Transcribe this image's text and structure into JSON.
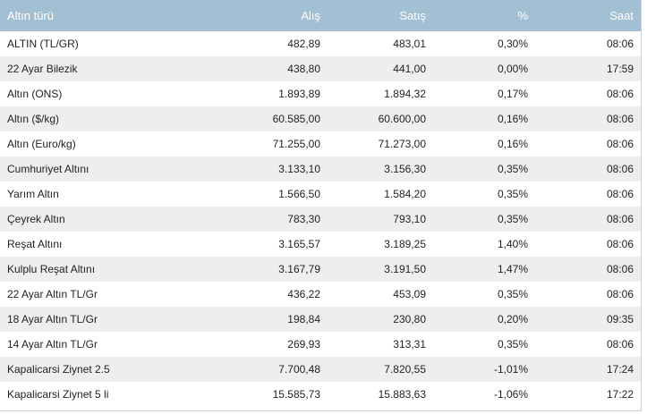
{
  "table": {
    "headers": {
      "name": "Altın türü",
      "alis": "Alış",
      "satis": "Satış",
      "pct": "%",
      "saat": "Saat"
    },
    "rows": [
      {
        "name": "ALTIN (TL/GR)",
        "alis": "482,89",
        "satis": "483,01",
        "pct": "0,30%",
        "saat": "08:06"
      },
      {
        "name": "22 Ayar Bilezik",
        "alis": "438,80",
        "satis": "441,00",
        "pct": "0,00%",
        "saat": "17:59"
      },
      {
        "name": "Altın (ONS)",
        "alis": "1.893,89",
        "satis": "1.894,32",
        "pct": "0,17%",
        "saat": "08:06"
      },
      {
        "name": "Altın ($/kg)",
        "alis": "60.585,00",
        "satis": "60.600,00",
        "pct": "0,16%",
        "saat": "08:06"
      },
      {
        "name": "Altın (Euro/kg)",
        "alis": "71.255,00",
        "satis": "71.273,00",
        "pct": "0,16%",
        "saat": "08:06"
      },
      {
        "name": "Cumhuriyet Altını",
        "alis": "3.133,10",
        "satis": "3.156,30",
        "pct": "0,35%",
        "saat": "08:06"
      },
      {
        "name": "Yarım Altın",
        "alis": "1.566,50",
        "satis": "1.584,20",
        "pct": "0,35%",
        "saat": "08:06"
      },
      {
        "name": "Çeyrek Altın",
        "alis": "783,30",
        "satis": "793,10",
        "pct": "0,35%",
        "saat": "08:06"
      },
      {
        "name": "Reşat Altını",
        "alis": "3.165,57",
        "satis": "3.189,25",
        "pct": "1,40%",
        "saat": "08:06"
      },
      {
        "name": "Kulplu Reşat Altını",
        "alis": "3.167,79",
        "satis": "3.191,50",
        "pct": "1,47%",
        "saat": "08:06"
      },
      {
        "name": "22 Ayar Altın TL/Gr",
        "alis": "436,22",
        "satis": "453,09",
        "pct": "0,35%",
        "saat": "08:06"
      },
      {
        "name": "18 Ayar Altın TL/Gr",
        "alis": "198,84",
        "satis": "230,80",
        "pct": "0,20%",
        "saat": "09:35"
      },
      {
        "name": "14 Ayar Altın TL/Gr",
        "alis": "269,93",
        "satis": "313,31",
        "pct": "0,35%",
        "saat": "08:06"
      },
      {
        "name": "Kapalicarsi Ziynet 2.5",
        "alis": "7.700,48",
        "satis": "7.820,55",
        "pct": "-1,01%",
        "saat": "17:24"
      },
      {
        "name": "Kapalicarsi Ziynet 5 li",
        "alis": "15.585,73",
        "satis": "15.883,63",
        "pct": "-1,06%",
        "saat": "17:22"
      }
    ]
  }
}
